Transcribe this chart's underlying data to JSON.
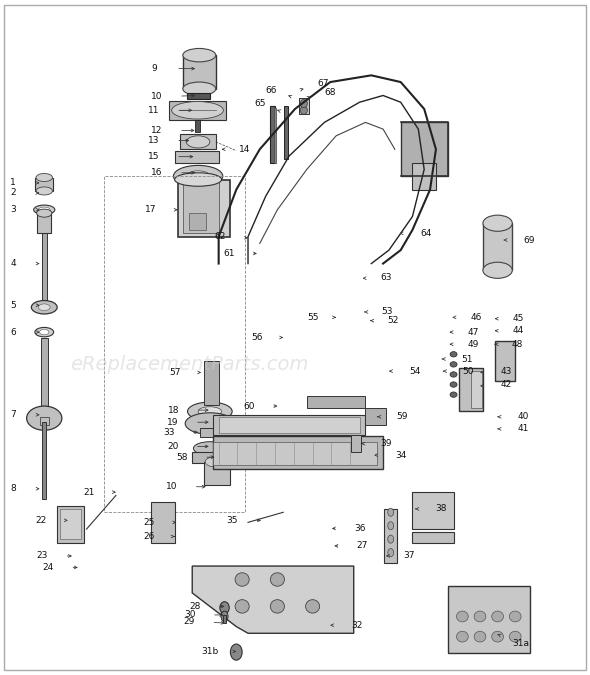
{
  "bg_color": "#ffffff",
  "line_color": "#333333",
  "watermark": "eReplacementParts.com",
  "watermark_color": "#cccccc",
  "watermark_fontsize": 14
}
